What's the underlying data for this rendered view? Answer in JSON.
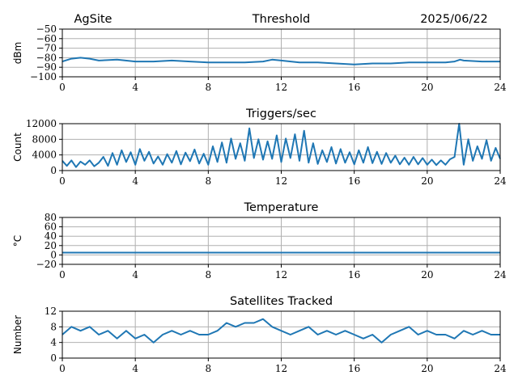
{
  "header": {
    "site": "AgSite",
    "date": "2025/06/22"
  },
  "colors": {
    "series": "#1f77b4",
    "grid": "#b0b0b0"
  },
  "chart_data": [
    {
      "id": "threshold",
      "type": "line",
      "title": "Threshold",
      "ylabel": "dBm",
      "xlim": [
        0,
        24
      ],
      "ylim": [
        -100,
        -50
      ],
      "xticks": [
        0,
        4,
        8,
        12,
        16,
        20,
        24
      ],
      "xtick_labels": [
        "0",
        "4",
        "8",
        "12",
        "16",
        "20",
        "24"
      ],
      "yticks": [
        -100,
        -90,
        -80,
        -70,
        -60,
        -50
      ],
      "ytick_labels": [
        "−100",
        "−90",
        "−80",
        "−70",
        "−60",
        "−50"
      ],
      "grid": true,
      "x": [
        0,
        0.5,
        1,
        1.5,
        2,
        3,
        4,
        5,
        6,
        7,
        8,
        9,
        10,
        11,
        11.5,
        12,
        13,
        14,
        15,
        16,
        17,
        18,
        19,
        20,
        21,
        21.5,
        21.8,
        22,
        23,
        24
      ],
      "series": [
        {
          "values": [
            -84,
            -81,
            -80,
            -81,
            -83,
            -82,
            -84,
            -84,
            -83,
            -84,
            -85,
            -85,
            -85,
            -84,
            -82,
            -83,
            -85,
            -85,
            -86,
            -87,
            -86,
            -86,
            -85,
            -85,
            -85,
            -84,
            -82,
            -83,
            -84,
            -84
          ]
        }
      ]
    },
    {
      "id": "triggers",
      "type": "line",
      "title": "Triggers/sec",
      "ylabel": "Count",
      "xlim": [
        0,
        24
      ],
      "ylim": [
        0,
        12000
      ],
      "xticks": [
        0,
        4,
        8,
        12,
        16,
        20,
        24
      ],
      "xtick_labels": [
        "0",
        "4",
        "8",
        "12",
        "16",
        "20",
        "24"
      ],
      "yticks": [
        0,
        4000,
        8000,
        12000
      ],
      "ytick_labels": [
        "0",
        "4000",
        "8000",
        "12000"
      ],
      "grid": true,
      "x": [
        0,
        0.25,
        0.5,
        0.75,
        1,
        1.25,
        1.5,
        1.75,
        2,
        2.25,
        2.5,
        2.75,
        3,
        3.25,
        3.5,
        3.75,
        4,
        4.25,
        4.5,
        4.75,
        5,
        5.25,
        5.5,
        5.75,
        6,
        6.25,
        6.5,
        6.75,
        7,
        7.25,
        7.5,
        7.75,
        8,
        8.25,
        8.5,
        8.75,
        9,
        9.25,
        9.5,
        9.75,
        10,
        10.25,
        10.5,
        10.75,
        11,
        11.25,
        11.5,
        11.75,
        12,
        12.25,
        12.5,
        12.75,
        13,
        13.25,
        13.5,
        13.75,
        14,
        14.25,
        14.5,
        14.75,
        15,
        15.25,
        15.5,
        15.75,
        16,
        16.25,
        16.5,
        16.75,
        17,
        17.25,
        17.5,
        17.75,
        18,
        18.25,
        18.5,
        18.75,
        19,
        19.25,
        19.5,
        19.75,
        20,
        20.25,
        20.5,
        20.75,
        21,
        21.25,
        21.5,
        21.75,
        22,
        22.25,
        22.5,
        22.75,
        23,
        23.25,
        23.5,
        23.75,
        24
      ],
      "series": [
        {
          "values": [
            2500,
            1200,
            2600,
            900,
            2300,
            1500,
            2600,
            1100,
            2000,
            3500,
            1200,
            4500,
            1500,
            5200,
            2200,
            4700,
            1500,
            5500,
            2500,
            4800,
            1800,
            3600,
            1500,
            4200,
            2000,
            5000,
            1600,
            4600,
            2400,
            5400,
            1800,
            4300,
            1500,
            6200,
            2200,
            7200,
            2000,
            8200,
            3000,
            7000,
            2500,
            10800,
            3200,
            8000,
            2800,
            7500,
            3000,
            9000,
            2200,
            8200,
            3200,
            9300,
            2500,
            10200,
            2000,
            7000,
            1700,
            5200,
            2200,
            6000,
            1800,
            5500,
            2000,
            4700,
            1600,
            5200,
            2000,
            6000,
            1900,
            4800,
            1700,
            4500,
            2000,
            3800,
            1600,
            3300,
            1500,
            3500,
            1600,
            3200,
            1500,
            2800,
            1400,
            2600,
            1500,
            2900,
            3500,
            12000,
            1500,
            8000,
            2500,
            6200,
            3000,
            7800,
            2500,
            5800,
            3000
          ]
        }
      ]
    },
    {
      "id": "temperature",
      "type": "line",
      "title": "Temperature",
      "ylabel": "°C",
      "xlim": [
        0,
        24
      ],
      "ylim": [
        -20,
        80
      ],
      "xticks": [
        0,
        4,
        8,
        12,
        16,
        20,
        24
      ],
      "xtick_labels": [
        "0",
        "4",
        "8",
        "12",
        "16",
        "20",
        "24"
      ],
      "yticks": [
        -20,
        0,
        20,
        40,
        60,
        80
      ],
      "ytick_labels": [
        "−20",
        "0",
        "20",
        "40",
        "60",
        "80"
      ],
      "grid": true,
      "x": [
        0,
        24
      ],
      "series": [
        {
          "values": [
            5,
            5
          ]
        }
      ]
    },
    {
      "id": "satellites",
      "type": "line",
      "title": "Satellites Tracked",
      "ylabel": "Number",
      "xlim": [
        0,
        24
      ],
      "ylim": [
        0,
        12
      ],
      "xticks": [
        0,
        4,
        8,
        12,
        16,
        20,
        24
      ],
      "xtick_labels": [
        "0",
        "4",
        "8",
        "12",
        "16",
        "20",
        "24"
      ],
      "yticks": [
        0,
        4,
        8,
        12
      ],
      "ytick_labels": [
        "0",
        "4",
        "8",
        "12"
      ],
      "grid": true,
      "x": [
        0,
        0.5,
        1,
        1.5,
        2,
        2.5,
        3,
        3.5,
        4,
        4.5,
        5,
        5.5,
        6,
        6.5,
        7,
        7.5,
        8,
        8.5,
        9,
        9.5,
        10,
        10.5,
        11,
        11.5,
        12,
        12.5,
        13,
        13.5,
        14,
        14.5,
        15,
        15.5,
        16,
        16.5,
        17,
        17.5,
        18,
        18.5,
        19,
        19.5,
        20,
        20.5,
        21,
        21.5,
        22,
        22.5,
        23,
        23.5,
        24
      ],
      "series": [
        {
          "values": [
            6,
            8,
            7,
            8,
            6,
            7,
            5,
            7,
            5,
            6,
            4,
            6,
            7,
            6,
            7,
            6,
            6,
            7,
            9,
            8,
            9,
            9,
            10,
            8,
            7,
            6,
            7,
            8,
            6,
            7,
            6,
            7,
            6,
            5,
            6,
            4,
            6,
            7,
            8,
            6,
            7,
            6,
            6,
            5,
            7,
            6,
            7,
            6,
            6
          ]
        }
      ]
    }
  ]
}
